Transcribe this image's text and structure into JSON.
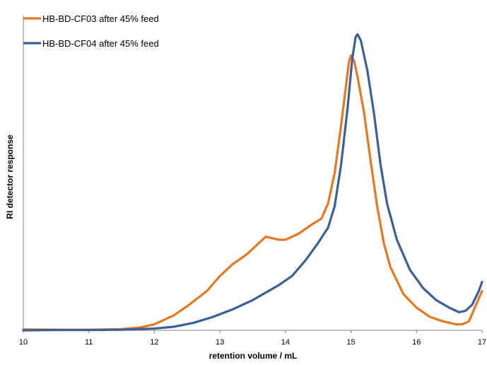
{
  "chart_data": {
    "type": "line",
    "title": "",
    "xlabel": "retention volume / mL",
    "ylabel": "RI detector response",
    "xlim": [
      10,
      17
    ],
    "ylim": [
      0,
      1.0
    ],
    "x_ticks": [
      "10",
      "11",
      "12",
      "13",
      "14",
      "15",
      "16",
      "17"
    ],
    "y_ticks_shown": false,
    "grid": false,
    "legend_position": "top-left",
    "series": [
      {
        "name": "HB-BD-CF03 after 45% feed",
        "color": "#E87722",
        "points": [
          [
            10.0,
            0.003
          ],
          [
            10.5,
            0.002
          ],
          [
            11.0,
            0.002
          ],
          [
            11.5,
            0.004
          ],
          [
            11.8,
            0.01
          ],
          [
            12.0,
            0.02
          ],
          [
            12.3,
            0.05
          ],
          [
            12.5,
            0.08
          ],
          [
            12.8,
            0.13
          ],
          [
            13.0,
            0.18
          ],
          [
            13.2,
            0.22
          ],
          [
            13.4,
            0.25
          ],
          [
            13.6,
            0.29
          ],
          [
            13.7,
            0.31
          ],
          [
            13.8,
            0.305
          ],
          [
            13.9,
            0.3
          ],
          [
            14.0,
            0.3
          ],
          [
            14.2,
            0.32
          ],
          [
            14.4,
            0.35
          ],
          [
            14.55,
            0.37
          ],
          [
            14.65,
            0.42
          ],
          [
            14.75,
            0.52
          ],
          [
            14.85,
            0.68
          ],
          [
            14.93,
            0.82
          ],
          [
            14.97,
            0.89
          ],
          [
            15.0,
            0.91
          ],
          [
            15.05,
            0.89
          ],
          [
            15.1,
            0.84
          ],
          [
            15.2,
            0.72
          ],
          [
            15.3,
            0.56
          ],
          [
            15.4,
            0.41
          ],
          [
            15.5,
            0.29
          ],
          [
            15.6,
            0.21
          ],
          [
            15.8,
            0.12
          ],
          [
            16.0,
            0.075
          ],
          [
            16.2,
            0.045
          ],
          [
            16.4,
            0.03
          ],
          [
            16.6,
            0.02
          ],
          [
            16.7,
            0.02
          ],
          [
            16.8,
            0.03
          ],
          [
            16.9,
            0.08
          ],
          [
            17.0,
            0.13
          ]
        ]
      },
      {
        "name": "HB-BD-CF04 after 45% feed",
        "color": "#3C5F96",
        "points": [
          [
            10.0,
            0.0
          ],
          [
            10.5,
            0.001
          ],
          [
            11.0,
            0.001
          ],
          [
            11.5,
            0.002
          ],
          [
            12.0,
            0.006
          ],
          [
            12.3,
            0.012
          ],
          [
            12.6,
            0.025
          ],
          [
            12.9,
            0.045
          ],
          [
            13.2,
            0.07
          ],
          [
            13.5,
            0.1
          ],
          [
            13.7,
            0.125
          ],
          [
            13.9,
            0.15
          ],
          [
            14.1,
            0.18
          ],
          [
            14.3,
            0.23
          ],
          [
            14.5,
            0.29
          ],
          [
            14.65,
            0.34
          ],
          [
            14.75,
            0.41
          ],
          [
            14.85,
            0.55
          ],
          [
            14.95,
            0.74
          ],
          [
            15.02,
            0.9
          ],
          [
            15.07,
            0.97
          ],
          [
            15.1,
            0.98
          ],
          [
            15.15,
            0.96
          ],
          [
            15.25,
            0.86
          ],
          [
            15.35,
            0.72
          ],
          [
            15.45,
            0.55
          ],
          [
            15.55,
            0.42
          ],
          [
            15.7,
            0.3
          ],
          [
            15.9,
            0.2
          ],
          [
            16.1,
            0.14
          ],
          [
            16.3,
            0.1
          ],
          [
            16.5,
            0.075
          ],
          [
            16.65,
            0.06
          ],
          [
            16.75,
            0.065
          ],
          [
            16.85,
            0.085
          ],
          [
            16.95,
            0.13
          ],
          [
            17.0,
            0.16
          ]
        ]
      }
    ]
  }
}
